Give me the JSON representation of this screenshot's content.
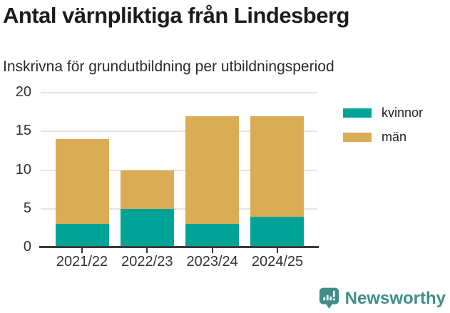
{
  "title": "Antal värnpliktiga från Lindesberg",
  "subtitle": "Inskrivna för grundutbildning per utbildningsperiod",
  "chart_data": {
    "type": "bar",
    "stacked": true,
    "categories": [
      "2021/22",
      "2022/23",
      "2023/24",
      "2024/25"
    ],
    "series": [
      {
        "name": "kvinnor",
        "color": "#00a496",
        "values": [
          3,
          5,
          3,
          4
        ]
      },
      {
        "name": "män",
        "color": "#dbac56",
        "values": [
          11,
          5,
          14,
          13
        ]
      }
    ],
    "totals": [
      14,
      10,
      17,
      17
    ],
    "title": "Antal värnpliktiga från Lindesberg",
    "subtitle": "Inskrivna för grundutbildning per utbildningsperiod",
    "xlabel": "",
    "ylabel": "",
    "ylim": [
      0,
      20
    ],
    "yticks": [
      0,
      5,
      10,
      15,
      20
    ],
    "grid": true,
    "legend_position": "right"
  },
  "legend": {
    "items": [
      {
        "label": "kvinnor",
        "color": "#00a496"
      },
      {
        "label": "män",
        "color": "#dbac56"
      }
    ]
  },
  "branding": {
    "logo_text": "Newsworthy",
    "color": "#3f8e89"
  },
  "colors": {
    "axis": "#3a3a3a",
    "gridline": "#e4e4e4",
    "tick_label": "#333333"
  }
}
